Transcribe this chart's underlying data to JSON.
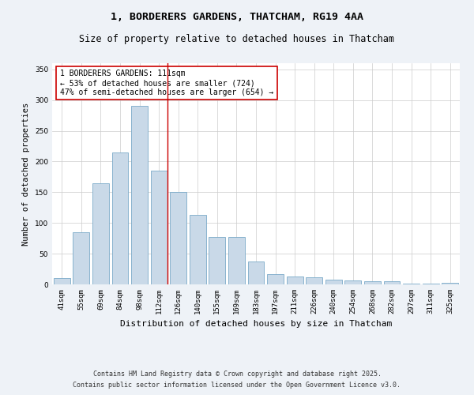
{
  "title_line1": "1, BORDERERS GARDENS, THATCHAM, RG19 4AA",
  "title_line2": "Size of property relative to detached houses in Thatcham",
  "xlabel": "Distribution of detached houses by size in Thatcham",
  "ylabel": "Number of detached properties",
  "categories": [
    "41sqm",
    "55sqm",
    "69sqm",
    "84sqm",
    "98sqm",
    "112sqm",
    "126sqm",
    "140sqm",
    "155sqm",
    "169sqm",
    "183sqm",
    "197sqm",
    "211sqm",
    "226sqm",
    "240sqm",
    "254sqm",
    "268sqm",
    "282sqm",
    "297sqm",
    "311sqm",
    "325sqm"
  ],
  "values": [
    10,
    85,
    165,
    215,
    290,
    185,
    150,
    113,
    77,
    77,
    37,
    17,
    13,
    12,
    8,
    7,
    5,
    5,
    1,
    1,
    3
  ],
  "bar_color": "#c9d9e8",
  "bar_edge_color": "#7aaac8",
  "vline_x_index": 5,
  "vline_color": "#cc0000",
  "annotation_text": "1 BORDERERS GARDENS: 111sqm\n← 53% of detached houses are smaller (724)\n47% of semi-detached houses are larger (654) →",
  "annotation_box_edge": "#cc0000",
  "ylim": [
    0,
    360
  ],
  "yticks": [
    0,
    50,
    100,
    150,
    200,
    250,
    300,
    350
  ],
  "footer_line1": "Contains HM Land Registry data © Crown copyright and database right 2025.",
  "footer_line2": "Contains public sector information licensed under the Open Government Licence v3.0.",
  "bg_color": "#eef2f7",
  "plot_bg_color": "#ffffff",
  "title_fontsize": 9.5,
  "subtitle_fontsize": 8.5,
  "tick_fontsize": 6.5,
  "ylabel_fontsize": 7.5,
  "xlabel_fontsize": 8,
  "footer_fontsize": 6,
  "annotation_fontsize": 7
}
